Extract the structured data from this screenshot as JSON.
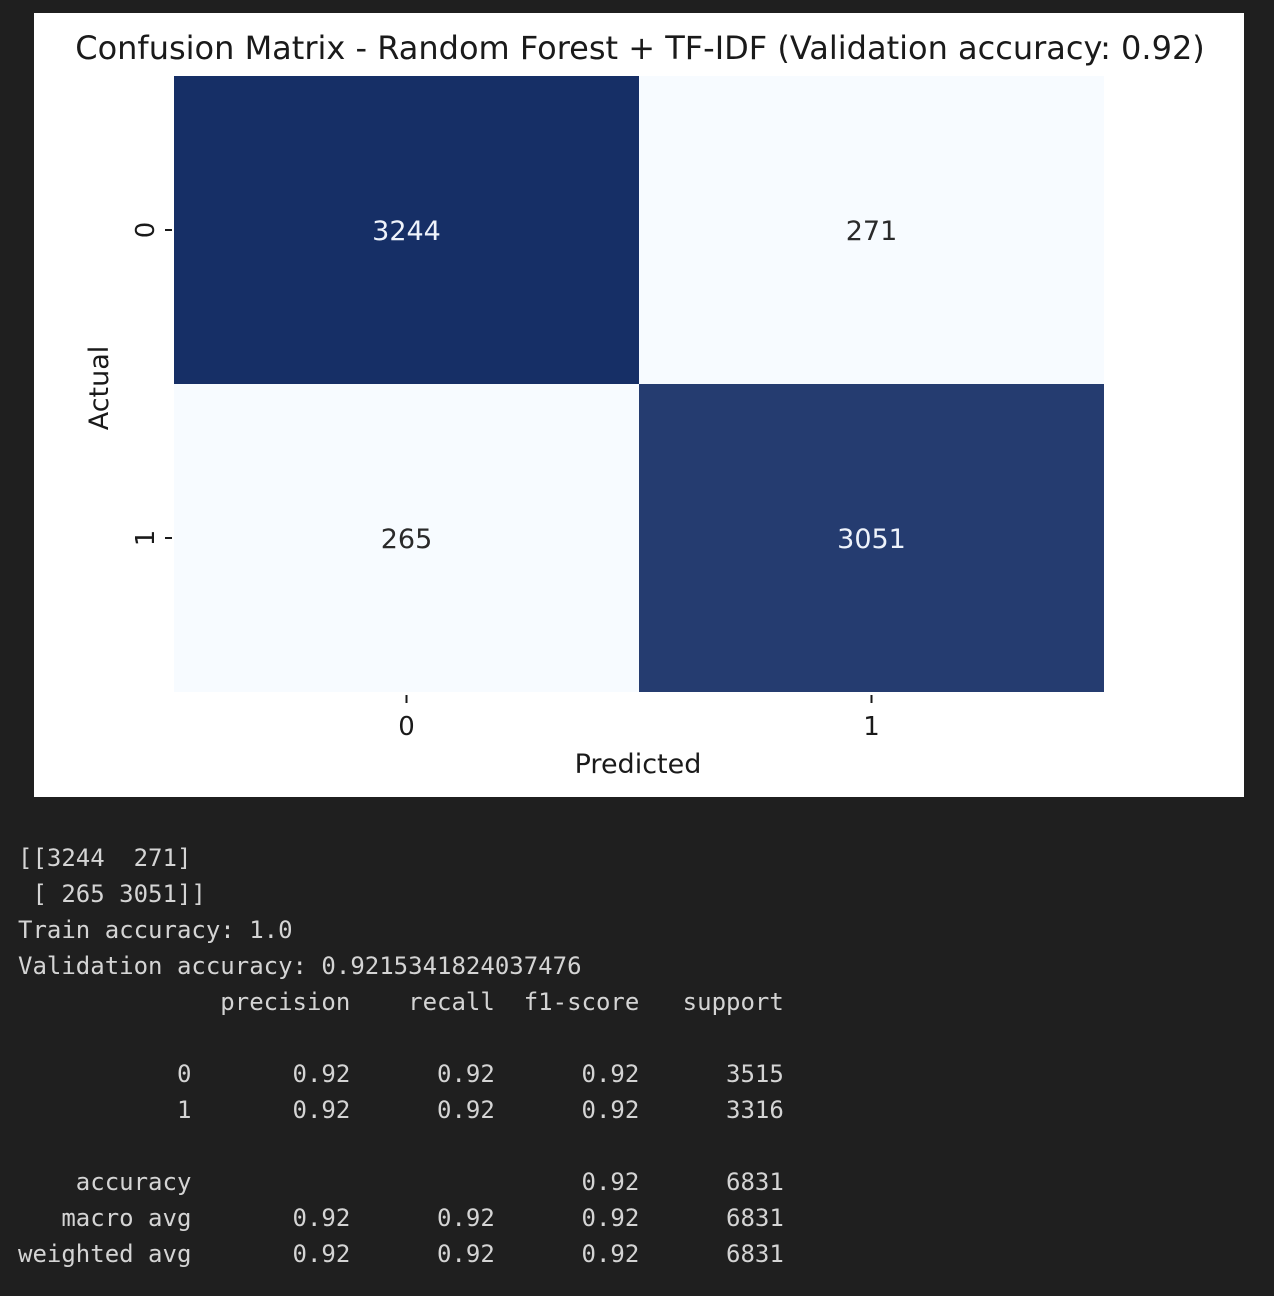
{
  "chart_data": {
    "type": "heatmap",
    "title": "Confusion Matrix - Random Forest + TF-IDF (Validation accuracy: 0.92)",
    "xlabel": "Predicted",
    "ylabel": "Actual",
    "x_categories": [
      "0",
      "1"
    ],
    "y_categories": [
      "0",
      "1"
    ],
    "values": [
      [
        3244,
        271
      ],
      [
        265,
        3051
      ]
    ],
    "colormap": "Blues",
    "colorbar": false,
    "colors": {
      "high": "#162f66",
      "low": "#f7fbff",
      "text_on_dark": "#eef3fb",
      "text_on_light": "#2a2a2a"
    }
  },
  "console": {
    "lines": [
      "[[3244  271]",
      " [ 265 3051]]",
      "Train accuracy: 1.0",
      "Validation accuracy: 0.9215341824037476",
      "              precision    recall  f1-score   support",
      "",
      "           0       0.92      0.92      0.92      3515",
      "           1       0.92      0.92      0.92      3316",
      "",
      "    accuracy                           0.92      6831",
      "   macro avg       0.92      0.92      0.92      6831",
      "weighted avg       0.92      0.92      0.92      6831"
    ]
  }
}
